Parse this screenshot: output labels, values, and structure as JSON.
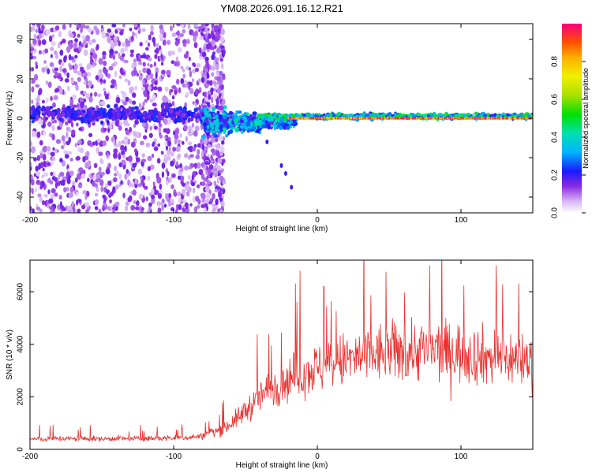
{
  "chart_data": [
    {
      "type": "heatmap",
      "title": "YM08.2026.091.16.12.R21",
      "xlabel": "Height of straight line (km)",
      "ylabel": "Frequency (Hz)",
      "xlim": [
        -200,
        150
      ],
      "ylim": [
        -48,
        48
      ],
      "x_ticks": [
        -200,
        -100,
        0,
        100
      ],
      "y_ticks": [
        -40,
        -20,
        0,
        20,
        40
      ],
      "colorbar": {
        "label": "Normalized spectral amplitude",
        "range": [
          0,
          1
        ],
        "ticks": [
          0.0,
          0.2,
          0.4,
          0.6,
          0.8
        ]
      },
      "description_regions": [
        {
          "x_range": [
            -200,
            -80
          ],
          "pattern": "scattered low-amplitude noise across all frequencies"
        },
        {
          "x_range": [
            -80,
            -20
          ],
          "pattern": "transition, energy concentrated near 0 Hz"
        },
        {
          "x_range": [
            -20,
            150
          ],
          "pattern": "narrow high-amplitude band at 0 Hz"
        }
      ]
    },
    {
      "type": "line",
      "xlabel": "Height of straight line (km)",
      "ylabel": "SNR (10 * v/v)",
      "xlim": [
        -200,
        150
      ],
      "ylim": [
        0,
        7200
      ],
      "x_ticks": [
        -200,
        -100,
        0,
        100
      ],
      "y_ticks": [
        0,
        2000,
        4000,
        6000
      ],
      "series": [
        {
          "name": "SNR",
          "color": "#e8322f",
          "x": [
            -200,
            -190,
            -180,
            -170,
            -160,
            -150,
            -140,
            -130,
            -120,
            -110,
            -100,
            -90,
            -80,
            -75,
            -70,
            -65,
            -60,
            -55,
            -50,
            -45,
            -40,
            -35,
            -30,
            -25,
            -20,
            -15,
            -10,
            -5,
            0,
            10,
            20,
            30,
            40,
            50,
            60,
            70,
            80,
            90,
            100,
            110,
            120,
            130,
            140,
            150
          ],
          "values": [
            400,
            380,
            420,
            400,
            410,
            390,
            420,
            400,
            410,
            420,
            430,
            450,
            500,
            650,
            700,
            800,
            1000,
            1200,
            1500,
            1700,
            2000,
            2200,
            2400,
            2500,
            2700,
            2800,
            2900,
            3000,
            3100,
            3200,
            3400,
            3500,
            3600,
            3700,
            3700,
            3800,
            3800,
            3700,
            3700,
            3600,
            3500,
            3500,
            3400,
            3400
          ]
        }
      ]
    }
  ]
}
